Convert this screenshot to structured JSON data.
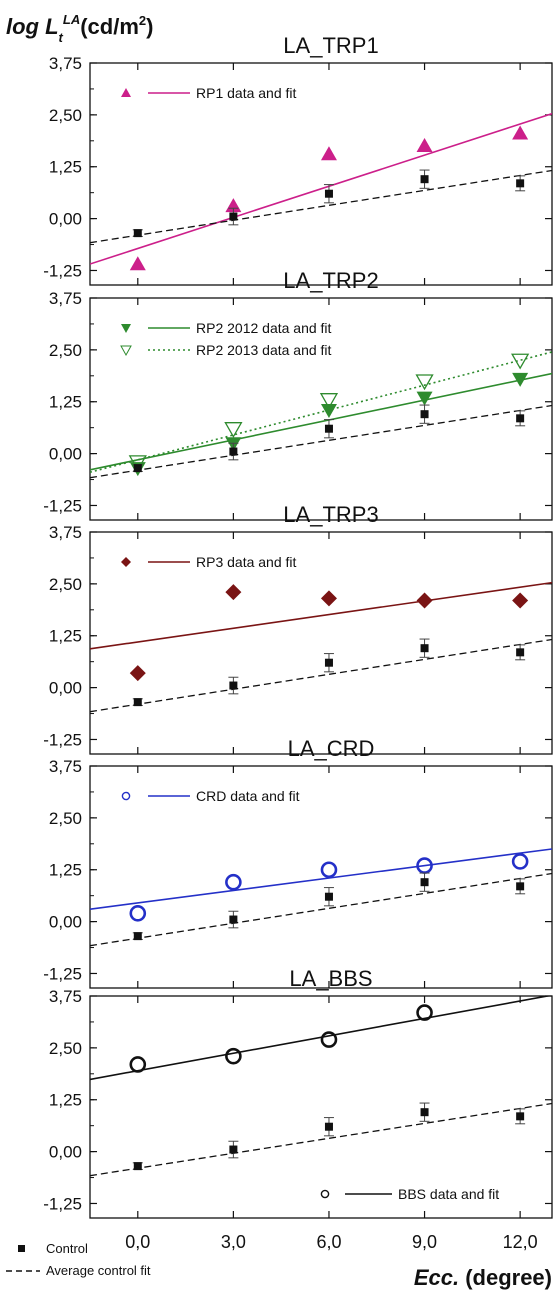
{
  "figure": {
    "ylabel": {
      "main": "log L",
      "sub": "t",
      "sup": "LA",
      "unit": "(cd/m",
      "unit_sup": "2",
      "unit_close": ")"
    },
    "xlabel": {
      "main": "Ecc.",
      "unit": " (degree)"
    },
    "xticks": [
      "0,0",
      "3,0",
      "6,0",
      "9,0",
      "12,0"
    ],
    "yticks": [
      "3,75",
      "2,50",
      "1,25",
      "0,00",
      "-1,25"
    ],
    "shared_legend": {
      "control_label": "Control",
      "control_fit_label": "Average control fit"
    }
  },
  "colors": {
    "magenta": "#cc1f8a",
    "green": "#2e8b2e",
    "darkred": "#7a1414",
    "blue": "#2430c8",
    "black": "#111111"
  },
  "chart_data": [
    {
      "type": "scatter",
      "title": "LA_TRP1",
      "xlim": [
        -1.5,
        13
      ],
      "ylim": [
        -1.6,
        3.75
      ],
      "grid": false,
      "x": [
        0,
        3,
        6,
        9,
        12
      ],
      "series": [
        {
          "name": "RP1 data and fit",
          "marker": "triangle-up",
          "color": "#cc1f8a",
          "values": [
            -1.1,
            0.3,
            1.55,
            1.75,
            2.05
          ],
          "fit": [
            -0.72,
            0.25
          ]
        },
        {
          "name": "Control",
          "marker": "square",
          "color": "#111111",
          "values": [
            -0.35,
            0.05,
            0.6,
            0.95,
            0.85
          ],
          "errors": [
            0.08,
            0.2,
            0.22,
            0.22,
            0.18
          ],
          "fit": [
            -0.4,
            0.12
          ]
        }
      ],
      "legend_position": "top-left"
    },
    {
      "type": "scatter",
      "title": "LA_TRP2",
      "xlim": [
        -1.5,
        13
      ],
      "ylim": [
        -1.6,
        3.75
      ],
      "grid": false,
      "x": [
        0,
        3,
        6,
        9,
        12
      ],
      "series": [
        {
          "name": "RP2 2012 data and fit",
          "marker": "triangle-down-filled",
          "color": "#2e8b2e",
          "values": [
            -0.35,
            0.25,
            1.05,
            1.35,
            1.8
          ],
          "fit": [
            -0.15,
            0.16
          ]
        },
        {
          "name": "RP2 2013 data and fit",
          "marker": "triangle-down-open",
          "color": "#2e8b2e",
          "values": [
            -0.2,
            0.6,
            1.3,
            1.75,
            2.25
          ],
          "fit": [
            -0.15,
            0.2
          ]
        },
        {
          "name": "Control",
          "marker": "square",
          "color": "#111111",
          "values": [
            -0.35,
            0.05,
            0.6,
            0.95,
            0.85
          ],
          "errors": [
            0.08,
            0.2,
            0.22,
            0.22,
            0.18
          ],
          "fit": [
            -0.4,
            0.12
          ]
        }
      ],
      "legend_position": "top-left"
    },
    {
      "type": "scatter",
      "title": "LA_TRP3",
      "xlim": [
        -1.5,
        13
      ],
      "ylim": [
        -1.6,
        3.75
      ],
      "grid": false,
      "x": [
        0,
        3,
        6,
        9,
        12
      ],
      "series": [
        {
          "name": "RP3 data and fit",
          "marker": "diamond",
          "color": "#7a1414",
          "values": [
            0.35,
            2.3,
            2.15,
            2.1,
            2.1
          ],
          "fit": [
            1.1,
            0.11
          ]
        },
        {
          "name": "Control",
          "marker": "square",
          "color": "#111111",
          "values": [
            -0.35,
            0.05,
            0.6,
            0.95,
            0.85
          ],
          "errors": [
            0.08,
            0.2,
            0.22,
            0.22,
            0.18
          ],
          "fit": [
            -0.4,
            0.12
          ]
        }
      ],
      "legend_position": "top-left"
    },
    {
      "type": "scatter",
      "title": "LA_CRD",
      "xlim": [
        -1.5,
        13
      ],
      "ylim": [
        -1.6,
        3.75
      ],
      "grid": false,
      "x": [
        0,
        3,
        6,
        9,
        12
      ],
      "series": [
        {
          "name": "CRD data and fit",
          "marker": "circle-open",
          "color": "#2430c8",
          "values": [
            0.2,
            0.95,
            1.25,
            1.35,
            1.45
          ],
          "fit": [
            0.45,
            0.1
          ]
        },
        {
          "name": "Control",
          "marker": "square",
          "color": "#111111",
          "values": [
            -0.35,
            0.05,
            0.6,
            0.95,
            0.85
          ],
          "errors": [
            0.08,
            0.2,
            0.22,
            0.22,
            0.18
          ],
          "fit": [
            -0.4,
            0.12
          ]
        }
      ],
      "legend_position": "top-left"
    },
    {
      "type": "scatter",
      "title": "LA_BBS",
      "xlim": [
        -1.5,
        13
      ],
      "ylim": [
        -1.6,
        3.75
      ],
      "grid": false,
      "x": [
        0,
        3,
        6,
        9,
        12
      ],
      "series": [
        {
          "name": "BBS data and fit",
          "marker": "circle-open",
          "color": "#111111",
          "values": [
            2.1,
            2.3,
            2.7,
            3.35
          ],
          "x": [
            0,
            3,
            6,
            9
          ],
          "fit": [
            1.95,
            0.14
          ]
        },
        {
          "name": "Control",
          "marker": "square",
          "color": "#111111",
          "values": [
            -0.35,
            0.05,
            0.6,
            0.95,
            0.85
          ],
          "errors": [
            0.08,
            0.2,
            0.22,
            0.22,
            0.18
          ],
          "fit": [
            -0.4,
            0.12
          ]
        }
      ],
      "legend_position": "bottom-right"
    }
  ]
}
